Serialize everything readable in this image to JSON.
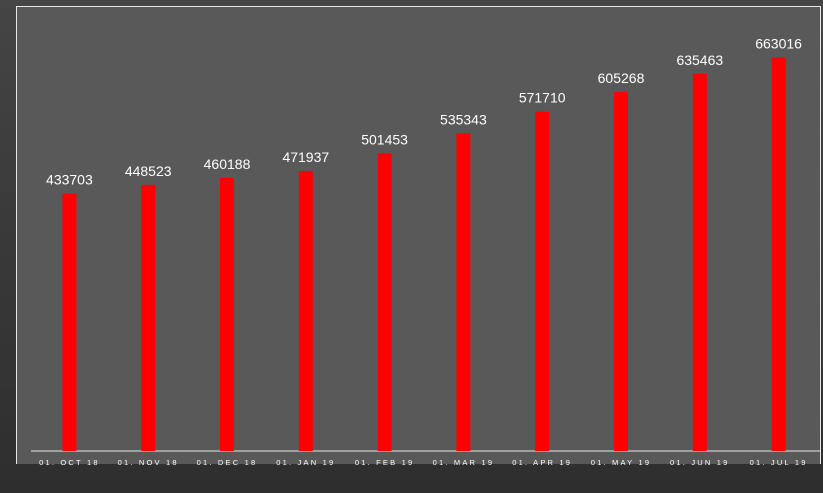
{
  "chart_data": {
    "type": "bar",
    "categories": [
      "01. OCT 18",
      "01. NOV 18",
      "01. DEC 18",
      "01. JAN 19",
      "01. FEB 19",
      "01. MAR 19",
      "01. APR 19",
      "01. MAY 19",
      "01. JUN 19",
      "01. JUL 19"
    ],
    "values": [
      433703,
      448523,
      460188,
      471937,
      501453,
      535343,
      571710,
      605268,
      635463,
      663016
    ],
    "title": "",
    "xlabel": "",
    "ylabel": "",
    "ylim": [
      0,
      760000
    ],
    "grid": false,
    "legend": "none",
    "bar_color": "#ff0000",
    "plot_background": "#595959",
    "axis_color": "#e6e6e6",
    "label_color": "#ffffff"
  }
}
